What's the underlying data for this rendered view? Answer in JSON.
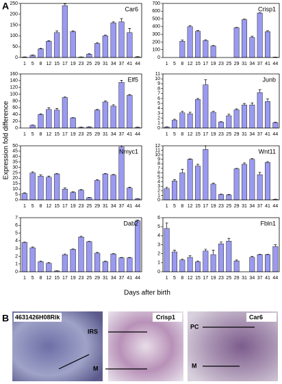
{
  "figure": {
    "panel_a": "A",
    "panel_b": "B",
    "ylabel": "Expression fold difference",
    "xlabel": "Days after birth"
  },
  "chart_data": [
    {
      "type": "bar",
      "title": "Car6",
      "color": "#9a9af0",
      "categories": [
        "1",
        "5",
        "8",
        "12",
        "15",
        "17",
        "19",
        "23",
        "25",
        "29",
        "31",
        "34",
        "37",
        "41",
        "44"
      ],
      "values": [
        2,
        10,
        40,
        75,
        115,
        240,
        120,
        2,
        15,
        65,
        100,
        160,
        165,
        115,
        3
      ],
      "errors": [
        1,
        2,
        3,
        3,
        8,
        8,
        3,
        1,
        2,
        4,
        4,
        5,
        15,
        20,
        1
      ],
      "ylim": [
        0,
        250
      ],
      "yticks": [
        0,
        50,
        100,
        150,
        200,
        250
      ]
    },
    {
      "type": "bar",
      "title": "Crisp1",
      "color": "#9a9af0",
      "categories": [
        "1",
        "5",
        "8",
        "12",
        "15",
        "17",
        "19",
        "23",
        "25",
        "29",
        "31",
        "34",
        "37",
        "41",
        "44"
      ],
      "values": [
        0,
        0,
        210,
        400,
        340,
        220,
        150,
        0,
        0,
        385,
        490,
        260,
        575,
        335,
        5
      ],
      "errors": [
        0,
        0,
        15,
        15,
        10,
        10,
        8,
        0,
        0,
        5,
        8,
        15,
        5,
        12,
        1
      ],
      "ylim": [
        0,
        700
      ],
      "yticks": [
        0,
        100,
        200,
        300,
        400,
        500,
        600,
        700
      ]
    },
    {
      "type": "bar",
      "title": "Elf5",
      "color": "#9a9af0",
      "categories": [
        "1",
        "5",
        "8",
        "12",
        "15",
        "17",
        "19",
        "23",
        "25",
        "29",
        "31",
        "34",
        "37",
        "41",
        "44"
      ],
      "values": [
        0,
        8,
        40,
        55,
        53,
        90,
        30,
        2,
        3,
        53,
        77,
        65,
        135,
        97,
        2
      ],
      "errors": [
        0,
        1,
        2,
        5,
        5,
        2,
        1,
        0.5,
        0.5,
        2,
        3,
        4,
        6,
        2,
        0.5
      ],
      "ylim": [
        0,
        160
      ],
      "yticks": [
        0,
        20,
        40,
        60,
        80,
        100,
        120,
        140,
        160
      ]
    },
    {
      "type": "bar",
      "title": "Junb",
      "color": "#9a9af0",
      "categories": [
        "1",
        "5",
        "8",
        "12",
        "15",
        "17",
        "19",
        "23",
        "25",
        "29",
        "31",
        "34",
        "37",
        "41",
        "44"
      ],
      "values": [
        0.2,
        1.6,
        3.1,
        2.9,
        5.8,
        8.8,
        3.2,
        1.2,
        2.5,
        3.7,
        4.7,
        4.7,
        7.2,
        5.4,
        1.1
      ],
      "errors": [
        0.05,
        0.2,
        0.3,
        0.3,
        0.2,
        1,
        0.2,
        0.1,
        0.3,
        0.2,
        0.3,
        0.4,
        0.6,
        0.5,
        0.1
      ],
      "ylim": [
        0,
        11
      ],
      "yticks": [
        0,
        1,
        2,
        3,
        4,
        5,
        6,
        7,
        8,
        9,
        10,
        11
      ]
    },
    {
      "type": "bar",
      "title": "Nmyc1",
      "color": "#9a9af0",
      "categories": [
        "1",
        "5",
        "8",
        "12",
        "15",
        "17",
        "19",
        "23",
        "25",
        "29",
        "31",
        "34",
        "37",
        "41",
        "44"
      ],
      "values": [
        6,
        25,
        22,
        21,
        24,
        10,
        7,
        9,
        2,
        18,
        24,
        23,
        49,
        11,
        1
      ],
      "errors": [
        0.5,
        1,
        1,
        1,
        0.5,
        1,
        0.5,
        0.5,
        0.3,
        0.8,
        0.5,
        0.5,
        1,
        0.8,
        0.2
      ],
      "ylim": [
        0,
        50
      ],
      "yticks": [
        0,
        5,
        10,
        15,
        20,
        25,
        30,
        35,
        40,
        45,
        50
      ]
    },
    {
      "type": "bar",
      "title": "Wnt11",
      "color": "#9a9af0",
      "categories": [
        "1",
        "5",
        "8",
        "12",
        "15",
        "17",
        "19",
        "23",
        "25",
        "29",
        "31",
        "34",
        "37",
        "41",
        "44"
      ],
      "values": [
        2.5,
        4.2,
        6,
        9,
        7.5,
        11.2,
        3.5,
        1.2,
        1.1,
        6.9,
        7.9,
        9,
        5.6,
        8.3,
        0.1
      ],
      "errors": [
        0.3,
        0.3,
        0.8,
        0.1,
        0.4,
        0.8,
        0.2,
        0.1,
        0.1,
        0.1,
        0.3,
        0.2,
        0.5,
        0.2,
        0.05
      ],
      "ylim": [
        0,
        12
      ],
      "yticks": [
        0,
        1,
        2,
        3,
        4,
        5,
        6,
        7,
        8,
        9,
        10,
        11,
        12
      ]
    },
    {
      "type": "bar",
      "title": "Dab2",
      "color": "#9a9af0",
      "categories": [
        "1",
        "5",
        "8",
        "12",
        "15",
        "17",
        "19",
        "23",
        "25",
        "29",
        "31",
        "34",
        "37",
        "41",
        "44"
      ],
      "values": [
        3.8,
        3.1,
        1.3,
        1.1,
        0.1,
        2.2,
        2.9,
        4.5,
        3.9,
        2.4,
        1.3,
        2.3,
        1.8,
        1.8,
        6.6
      ],
      "errors": [
        0.05,
        0.1,
        0.1,
        0.1,
        0.02,
        0.1,
        0.05,
        0.1,
        0.05,
        0.1,
        0.1,
        0.05,
        0.05,
        0.05,
        0.1
      ],
      "ylim": [
        0,
        7
      ],
      "yticks": [
        0,
        1,
        2,
        3,
        4,
        5,
        6,
        7
      ]
    },
    {
      "type": "bar",
      "title": "Fbln1",
      "color": "#9a9af0",
      "categories": [
        "1",
        "5",
        "8",
        "12",
        "15",
        "17",
        "19",
        "23",
        "25",
        "29",
        "31",
        "34",
        "37",
        "41",
        "44"
      ],
      "values": [
        4.8,
        2.2,
        1.3,
        1.6,
        1.1,
        2.3,
        1.9,
        3.1,
        3.4,
        1.2,
        0,
        1.6,
        1.9,
        1.9,
        2.8
      ],
      "errors": [
        0.6,
        0.2,
        0.1,
        0.2,
        0.1,
        0.2,
        0.5,
        0.2,
        0.3,
        0.1,
        0,
        0.1,
        0.05,
        0.05,
        0.2
      ],
      "ylim": [
        0,
        6
      ],
      "yticks": [
        0,
        1,
        2,
        3,
        4,
        5,
        6
      ]
    }
  ],
  "panel_b_images": [
    {
      "title": "4631426H08Rik",
      "labels": [
        "IRS",
        "M"
      ]
    },
    {
      "title": "Crisp1",
      "labels": []
    },
    {
      "title": "Car6",
      "labels": [
        "PC",
        "M"
      ]
    }
  ]
}
